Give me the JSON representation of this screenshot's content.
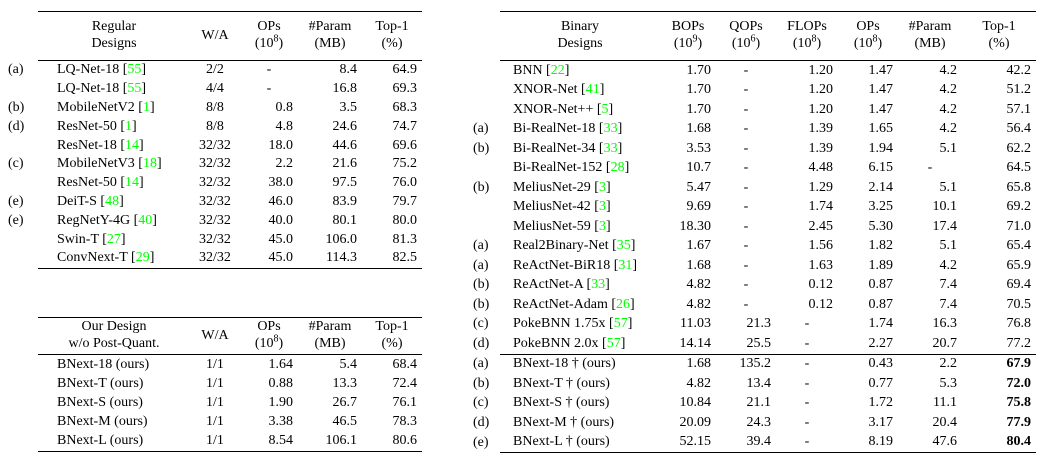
{
  "page": {
    "background_color": "#ffffff",
    "text_color": "#000000",
    "citation_color": "#00ff00"
  },
  "chart_data": [
    {
      "type": "table",
      "title": "Regular Designs",
      "columns": [
        "Regular Designs",
        "W/A",
        "OPs (10^8)",
        "#Param (MB)",
        "Top-1 (%)"
      ],
      "rows_see": "tables.0.rows"
    },
    {
      "type": "table",
      "title": "Our Design w/o Post-Quant.",
      "columns": [
        "Our Design w/o Post-Quant.",
        "W/A",
        "OPs (10^8)",
        "#Param (MB)",
        "Top-1 (%)"
      ],
      "rows_see": "tables.1.rows"
    },
    {
      "type": "table",
      "title": "Binary Designs",
      "columns": [
        "Binary Designs",
        "BOPs (10^9)",
        "QOPs (10^6)",
        "FLOPs (10^8)",
        "OPs (10^8)",
        "#Param (MB)",
        "Top-1 (%)"
      ],
      "rows_see": "tables.2.rows"
    }
  ],
  "tables": [
    {
      "name": "regular-designs",
      "columns": [
        {
          "label": "Regular\nDesigns"
        },
        {
          "label": "W/A"
        },
        {
          "label": "OPs\n(10^8)"
        },
        {
          "label": "#Param\n(MB)"
        },
        {
          "label": "Top-1\n(%)"
        }
      ],
      "rows": [
        {
          "tag": "(a)",
          "cells": [
            "LQ-Net-18 [55]",
            "2/2",
            "-",
            "8.4",
            "64.9"
          ]
        },
        {
          "tag": "",
          "cells": [
            "LQ-Net-18 [55]",
            "4/4",
            "-",
            "16.8",
            "69.3"
          ]
        },
        {
          "tag": "(b)",
          "cells": [
            "MobileNetV2 [1]",
            "8/8",
            "0.8",
            "3.5",
            "68.3"
          ]
        },
        {
          "tag": "(d)",
          "cells": [
            "ResNet-50 [1]",
            "8/8",
            "4.8",
            "24.6",
            "74.7"
          ]
        },
        {
          "tag": "",
          "cells": [
            "ResNet-18 [14]",
            "32/32",
            "18.0",
            "44.6",
            "69.6"
          ]
        },
        {
          "tag": "(c)",
          "cells": [
            "MobileNetV3 [18]",
            "32/32",
            "2.2",
            "21.6",
            "75.2"
          ]
        },
        {
          "tag": "",
          "cells": [
            "ResNet-50 [14]",
            "32/32",
            "38.0",
            "97.5",
            "76.0"
          ]
        },
        {
          "tag": "(e)",
          "cells": [
            "DeiT-S [48]",
            "32/32",
            "46.0",
            "83.9",
            "79.7"
          ]
        },
        {
          "tag": "(e)",
          "cells": [
            "RegNetY-4G [40]",
            "32/32",
            "40.0",
            "80.1",
            "80.0"
          ]
        },
        {
          "tag": "",
          "cells": [
            "Swin-T [27]",
            "32/32",
            "45.0",
            "106.0",
            "81.3"
          ]
        },
        {
          "tag": "",
          "cells": [
            "ConvNext-T [29]",
            "32/32",
            "45.0",
            "114.3",
            "82.5"
          ]
        }
      ]
    },
    {
      "name": "our-design-wo-post-quant",
      "columns": [
        {
          "label": "Our Design\nw/o Post-Quant."
        },
        {
          "label": "W/A"
        },
        {
          "label": "OPs\n(10^8)"
        },
        {
          "label": "#Param\n(MB)"
        },
        {
          "label": "Top-1\n(%)"
        }
      ],
      "rows": [
        {
          "tag": "",
          "cells": [
            "BNext-18 (ours)",
            "1/1",
            "1.64",
            "5.4",
            "68.4"
          ]
        },
        {
          "tag": "",
          "cells": [
            "BNext-T (ours)",
            "1/1",
            "0.88",
            "13.3",
            "72.4"
          ]
        },
        {
          "tag": "",
          "cells": [
            "BNext-S (ours)",
            "1/1",
            "1.90",
            "26.7",
            "76.1"
          ]
        },
        {
          "tag": "",
          "cells": [
            "BNext-M (ours)",
            "1/1",
            "3.38",
            "46.5",
            "78.3"
          ]
        },
        {
          "tag": "",
          "cells": [
            "BNext-L (ours)",
            "1/1",
            "8.54",
            "106.1",
            "80.6"
          ]
        }
      ]
    },
    {
      "name": "binary-designs",
      "columns": [
        {
          "label": "Binary\nDesigns"
        },
        {
          "label": "BOPs\n(10^9)"
        },
        {
          "label": "QOPs\n(10^6)"
        },
        {
          "label": "FLOPs\n(10^8)"
        },
        {
          "label": "OPs\n(10^8)"
        },
        {
          "label": "#Param\n(MB)"
        },
        {
          "label": "Top-1\n(%)"
        }
      ],
      "rows": [
        {
          "tag": "",
          "cells": [
            "BNN [22]",
            "1.70",
            "-",
            "1.20",
            "1.47",
            "4.2",
            "42.2"
          ]
        },
        {
          "tag": "",
          "cells": [
            "XNOR-Net [41]",
            "1.70",
            "-",
            "1.20",
            "1.47",
            "4.2",
            "51.2"
          ]
        },
        {
          "tag": "",
          "cells": [
            "XNOR-Net++ [5]",
            "1.70",
            "-",
            "1.20",
            "1.47",
            "4.2",
            "57.1"
          ]
        },
        {
          "tag": "(a)",
          "cells": [
            "Bi-RealNet-18 [33]",
            "1.68",
            "-",
            "1.39",
            "1.65",
            "4.2",
            "56.4"
          ]
        },
        {
          "tag": "(b)",
          "cells": [
            "Bi-RealNet-34 [33]",
            "3.53",
            "-",
            "1.39",
            "1.94",
            "5.1",
            "62.2"
          ]
        },
        {
          "tag": "",
          "cells": [
            "Bi-RealNet-152 [28]",
            "10.7",
            "-",
            "4.48",
            "6.15",
            "-",
            "64.5"
          ]
        },
        {
          "tag": "(b)",
          "cells": [
            "MeliusNet-29 [3]",
            "5.47",
            "-",
            "1.29",
            "2.14",
            "5.1",
            "65.8"
          ]
        },
        {
          "tag": "",
          "cells": [
            "MeliusNet-42 [3]",
            "9.69",
            "-",
            "1.74",
            "3.25",
            "10.1",
            "69.2"
          ]
        },
        {
          "tag": "",
          "cells": [
            "MeliusNet-59 [3]",
            "18.30",
            "-",
            "2.45",
            "5.30",
            "17.4",
            "71.0"
          ]
        },
        {
          "tag": "(a)",
          "cells": [
            "Real2Binary-Net [35]",
            "1.67",
            "-",
            "1.56",
            "1.82",
            "5.1",
            "65.4"
          ]
        },
        {
          "tag": "(a)",
          "cells": [
            "ReActNet-BiR18 [31]",
            "1.68",
            "-",
            "1.63",
            "1.89",
            "4.2",
            "65.9"
          ]
        },
        {
          "tag": "(b)",
          "cells": [
            "ReActNet-A [33]",
            "4.82",
            "-",
            "0.12",
            "0.87",
            "7.4",
            "69.4"
          ]
        },
        {
          "tag": "(b)",
          "cells": [
            "ReActNet-Adam [26]",
            "4.82",
            "-",
            "0.12",
            "0.87",
            "7.4",
            "70.5"
          ]
        },
        {
          "tag": "(c)",
          "cells": [
            "PokeBNN 1.75x [57]",
            "11.03",
            "21.3",
            "-",
            "1.74",
            "16.3",
            "76.8"
          ]
        },
        {
          "tag": "(d)",
          "cells": [
            "PokeBNN 2.0x [57]",
            "14.14",
            "25.5",
            "-",
            "2.27",
            "20.7",
            "77.2"
          ]
        },
        {
          "tag": "(a)",
          "cells": [
            "BNext-18 † (ours)",
            "1.68",
            "135.2",
            "-",
            "0.43",
            "2.2",
            "67.9"
          ],
          "rule_above": true,
          "bold_last": true
        },
        {
          "tag": "(b)",
          "cells": [
            "BNext-T † (ours)",
            "4.82",
            "13.4",
            "-",
            "0.77",
            "5.3",
            "72.0"
          ],
          "bold_last": true
        },
        {
          "tag": "(c)",
          "cells": [
            "BNext-S † (ours)",
            "10.84",
            "21.1",
            "-",
            "1.72",
            "11.1",
            "75.8"
          ],
          "bold_last": true
        },
        {
          "tag": "(d)",
          "cells": [
            "BNext-M † (ours)",
            "20.09",
            "24.3",
            "-",
            "3.17",
            "20.4",
            "77.9"
          ],
          "bold_last": true
        },
        {
          "tag": "(e)",
          "cells": [
            "BNext-L † (ours)",
            "52.15",
            "39.4",
            "-",
            "8.19",
            "47.6",
            "80.4"
          ],
          "bold_last": true
        }
      ]
    }
  ]
}
